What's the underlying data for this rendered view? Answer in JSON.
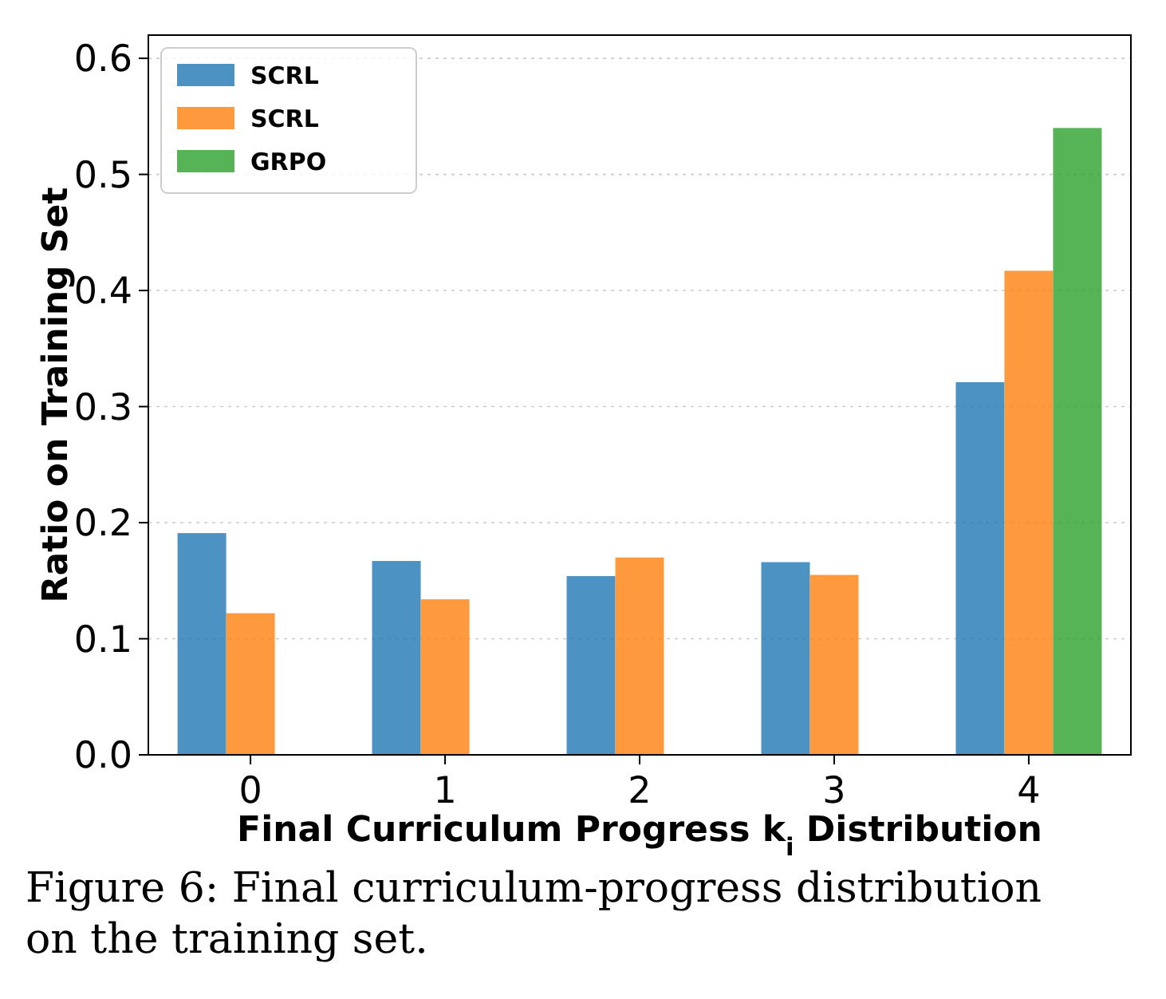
{
  "chart_data": {
    "type": "bar",
    "xlabel": "Final Curriculum Progress k$_{i}$ Distribution",
    "ylabel": "Ratio on Training Set",
    "categories": [
      "0",
      "1",
      "2",
      "3",
      "4"
    ],
    "series": [
      {
        "name": "SCRL",
        "color": "#1f77b4",
        "values": [
          0.191,
          0.167,
          0.154,
          0.166,
          0.321
        ]
      },
      {
        "name": "SCRL",
        "color": "#ff7f0e",
        "values": [
          0.122,
          0.134,
          0.17,
          0.155,
          0.417
        ]
      },
      {
        "name": "GRPO",
        "color": "#2ca02c",
        "values": [
          null,
          null,
          null,
          null,
          0.54
        ]
      }
    ],
    "ylim": [
      0,
      0.62
    ],
    "yticks": [
      {
        "value": 0,
        "label": "0.0"
      },
      0.1,
      0.2,
      0.3,
      0.4,
      0.5,
      0.6
    ],
    "grid": "y",
    "legend": "top left",
    "annotations": [
      "Figure 6: Final curriculum-progress distribution on the training set."
    ]
  }
}
